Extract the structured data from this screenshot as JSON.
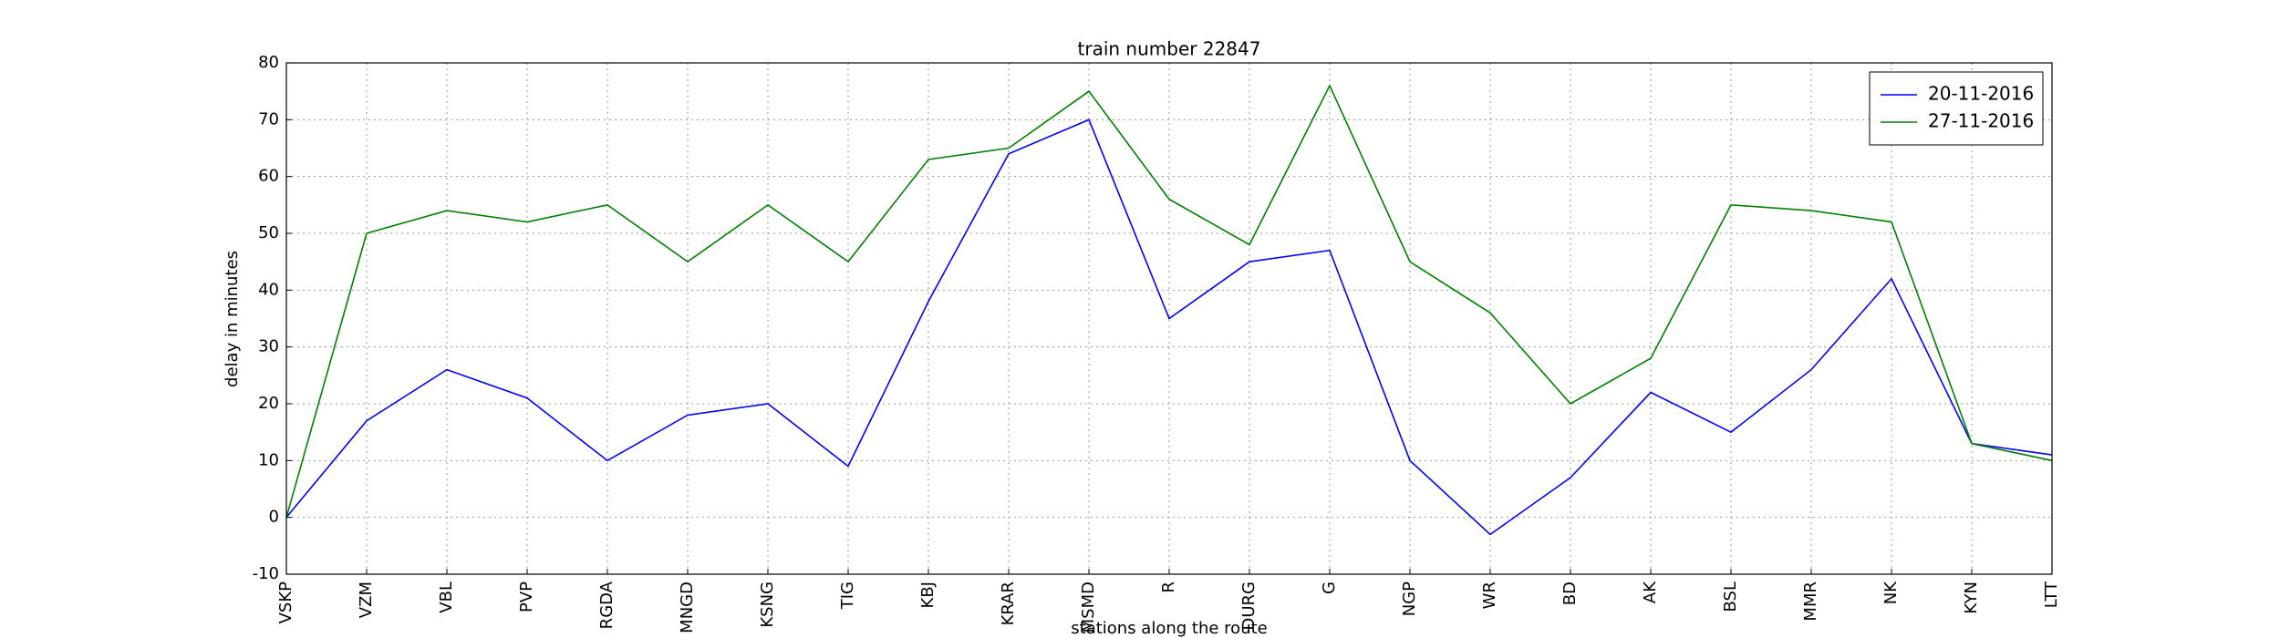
{
  "chart_data": {
    "type": "line",
    "title": "train number 22847",
    "x_label": "stations along the route",
    "y_label": "delay in minutes",
    "categories": [
      "VSKP",
      "VZM",
      "VBL",
      "PVP",
      "RGDA",
      "MNGD",
      "KSNG",
      "TIG",
      "KBJ",
      "KRAR",
      "MSMD",
      "R",
      "DURG",
      "G",
      "NGP",
      "WR",
      "BD",
      "AK",
      "BSL",
      "MMR",
      "NK",
      "KYN",
      "LTT"
    ],
    "series": [
      {
        "name": "20-11-2016",
        "color": "#0000ff",
        "values": [
          0,
          17,
          26,
          21,
          10,
          18,
          20,
          9,
          38,
          64,
          70,
          35,
          45,
          47,
          10,
          -3,
          7,
          22,
          15,
          26,
          42,
          13,
          11
        ]
      },
      {
        "name": "27-11-2016",
        "color": "#008000",
        "values": [
          0,
          50,
          54,
          52,
          55,
          45,
          55,
          45,
          63,
          65,
          75,
          56,
          48,
          76,
          45,
          36,
          20,
          28,
          55,
          54,
          52,
          13,
          10
        ]
      }
    ],
    "ylim": [
      -10,
      80
    ],
    "yticks": [
      -10,
      0,
      10,
      20,
      30,
      40,
      50,
      60,
      70,
      80
    ],
    "grid": true,
    "legend": "upper right"
  }
}
